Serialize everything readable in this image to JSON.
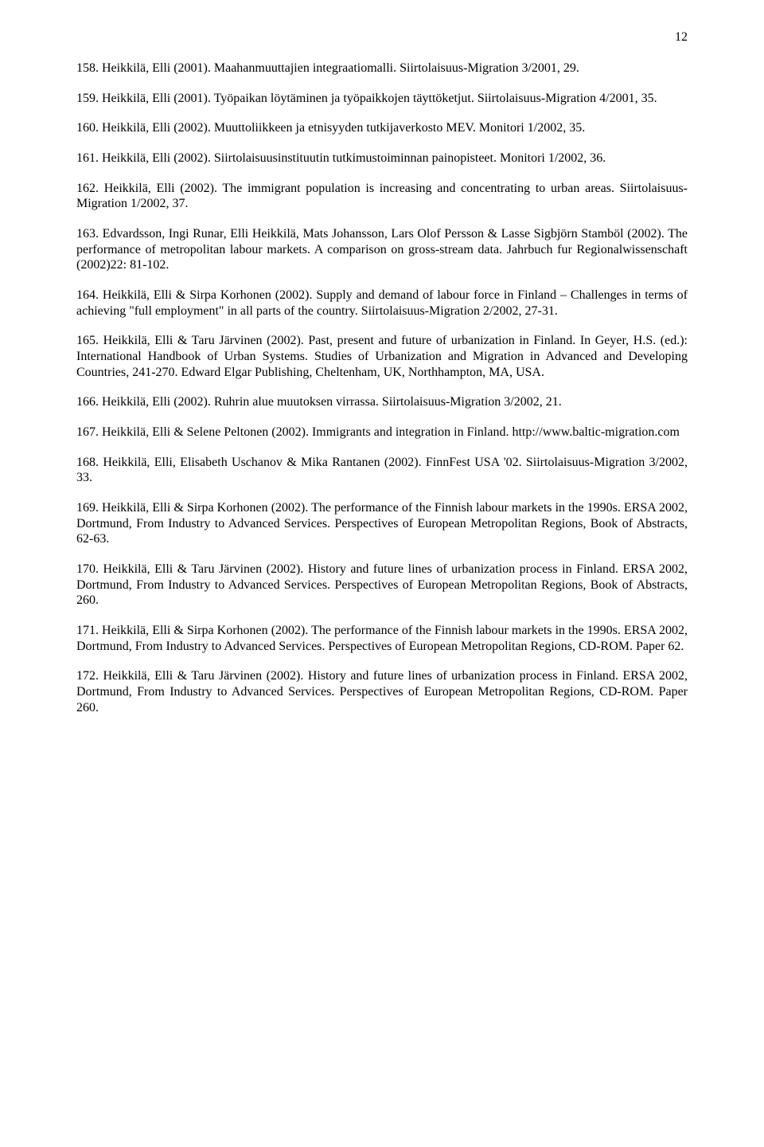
{
  "page_number": "12",
  "font": {
    "family": "Times New Roman",
    "size_pt": 12,
    "color": "#000000"
  },
  "background_color": "#ffffff",
  "entries": [
    "158. Heikkilä, Elli (2001). Maahanmuuttajien integraatiomalli. Siirtolaisuus-Migration 3/2001, 29.",
    "159. Heikkilä, Elli (2001). Työpaikan löytäminen ja työpaikkojen täyttöketjut. Siirtolaisuus-Migration 4/2001, 35.",
    "160. Heikkilä, Elli (2002). Muuttoliikkeen ja etnisyyden tutkijaverkosto MEV. Monitori 1/2002, 35.",
    "161. Heikkilä, Elli (2002). Siirtolaisuusinstituutin tutkimustoiminnan painopisteet. Monitori 1/2002, 36.",
    "162. Heikkilä, Elli (2002). The immigrant population is increasing and concentrating to urban areas. Siirtolaisuus-Migration 1/2002, 37.",
    "163. Edvardsson, Ingi Runar, Elli Heikkilä, Mats Johansson, Lars Olof Persson & Lasse Sigbjörn Stamböl (2002). The performance of metropolitan labour markets. A comparison on gross-stream data. Jahrbuch fur Regionalwissenschaft (2002)22: 81-102.",
    "164. Heikkilä, Elli & Sirpa Korhonen (2002). Supply and demand of labour force in Finland – Challenges in terms of achieving \"full employment\" in all parts of the country. Siirtolaisuus-Migration 2/2002, 27-31.",
    "165. Heikkilä, Elli & Taru Järvinen (2002). Past, present and future of urbanization in Finland. In Geyer, H.S. (ed.): International Handbook of Urban Systems. Studies of Urbanization and Migration in Advanced and Developing Countries, 241-270. Edward Elgar Publishing, Cheltenham, UK, Northhampton, MA, USA.",
    "166. Heikkilä, Elli (2002). Ruhrin alue muutoksen virrassa. Siirtolaisuus-Migration 3/2002, 21.",
    "167. Heikkilä, Elli & Selene Peltonen (2002). Immigrants and integration in Finland. http://www.baltic-migration.com",
    "168. Heikkilä, Elli, Elisabeth Uschanov & Mika Rantanen (2002). FinnFest USA '02. Siirtolaisuus-Migration 3/2002, 33.",
    "169. Heikkilä, Elli & Sirpa Korhonen (2002). The performance of the Finnish labour markets in the 1990s. ERSA 2002, Dortmund, From Industry to Advanced Services. Perspectives of European Metropolitan Regions, Book of Abstracts, 62-63.",
    "170. Heikkilä, Elli & Taru Järvinen (2002). History and future lines of urbanization process in Finland. ERSA 2002, Dortmund, From Industry to Advanced Services. Perspectives of European Metropolitan Regions, Book of Abstracts, 260.",
    "171. Heikkilä, Elli & Sirpa Korhonen (2002). The performance of the Finnish labour markets in the 1990s. ERSA 2002, Dortmund, From Industry to Advanced Services. Perspectives of European Metropolitan Regions, CD-ROM. Paper 62.",
    "172. Heikkilä, Elli & Taru Järvinen (2002). History and future lines of urbanization process in Finland. ERSA 2002, Dortmund, From Industry to Advanced Services. Perspectives of European Metropolitan Regions, CD-ROM. Paper 260."
  ]
}
